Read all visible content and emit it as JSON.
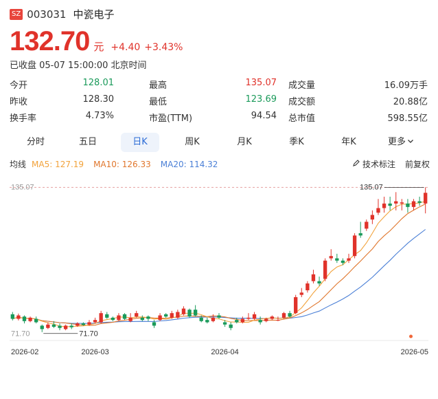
{
  "stock": {
    "market_badge": "SZ",
    "code": "003031",
    "name": "中瓷电子",
    "price": "132.70",
    "unit": "元",
    "change": "+4.40",
    "change_pct": "+3.43%",
    "status": "已收盘 05-07 15:00:00 北京时间"
  },
  "stats": {
    "rows": [
      [
        {
          "label": "今开",
          "value": "128.01",
          "tone": "green"
        },
        {
          "label": "最高",
          "value": "135.07",
          "tone": "red"
        },
        {
          "label": "成交量",
          "value": "16.09万手",
          "tone": "dark"
        }
      ],
      [
        {
          "label": "昨收",
          "value": "128.30",
          "tone": "dark"
        },
        {
          "label": "最低",
          "value": "123.69",
          "tone": "green"
        },
        {
          "label": "成交额",
          "value": "20.88亿",
          "tone": "dark"
        }
      ],
      [
        {
          "label": "换手率",
          "value": "4.73%",
          "tone": "dark"
        },
        {
          "label": "市盈(TTM)",
          "value": "94.54",
          "tone": "dark"
        },
        {
          "label": "总市值",
          "value": "598.55亿",
          "tone": "dark"
        }
      ]
    ]
  },
  "tabs": [
    "分时",
    "五日",
    "日K",
    "周K",
    "月K",
    "季K",
    "年K",
    "更多"
  ],
  "active_tab": "日K",
  "ma": {
    "label": "均线",
    "ma5": "MA5: 127.19",
    "ma10": "MA10: 126.33",
    "ma20": "MA20: 114.32",
    "tech_label": "技术标注",
    "adjust_label": "前复权",
    "colors": {
      "ma5": "#f2a23a",
      "ma10": "#e0762c",
      "ma20": "#4a7fd6"
    }
  },
  "colors": {
    "up": "#e0322a",
    "down": "#1a9a5a",
    "grid": "#e9e9e9"
  },
  "chart_data": {
    "type": "candlestick",
    "y_axis_label": "135.07",
    "ylim": [
      68,
      137
    ],
    "high_label": "135.07",
    "low_label": "71.70",
    "x_ticks": [
      {
        "index": 0,
        "label": "2026-02"
      },
      {
        "index": 14,
        "label": "2026-03"
      },
      {
        "index": 36,
        "label": "2026-04"
      },
      {
        "index": 60,
        "label": "2026-05"
      }
    ],
    "candles": [
      [
        79.5,
        77.5,
        80.5,
        76.8
      ],
      [
        77.5,
        79.0,
        79.8,
        76.8
      ],
      [
        78.5,
        76.5,
        79.0,
        75.5
      ],
      [
        76.5,
        78.0,
        78.5,
        76.0
      ],
      [
        77.5,
        76.0,
        78.5,
        75.5
      ],
      [
        74.5,
        73.0,
        75.0,
        71.7
      ],
      [
        73.5,
        75.0,
        76.0,
        73.0
      ],
      [
        75.0,
        74.0,
        76.5,
        73.5
      ],
      [
        74.5,
        73.5,
        75.5,
        72.5
      ],
      [
        73.0,
        74.5,
        75.0,
        72.5
      ],
      [
        74.5,
        73.8,
        75.5,
        73.0
      ],
      [
        74.5,
        75.5,
        76.0,
        74.0
      ],
      [
        75.5,
        74.8,
        76.0,
        74.5
      ],
      [
        75.0,
        76.0,
        77.0,
        74.5
      ],
      [
        76.0,
        77.0,
        78.0,
        75.5
      ],
      [
        76.0,
        80.0,
        81.0,
        75.5
      ],
      [
        79.5,
        78.0,
        80.5,
        77.5
      ],
      [
        78.0,
        77.0,
        78.5,
        76.5
      ],
      [
        77.0,
        79.0,
        80.0,
        76.5
      ],
      [
        79.5,
        77.5,
        80.0,
        77.0
      ],
      [
        76.5,
        78.0,
        80.0,
        76.0
      ],
      [
        78.5,
        80.0,
        81.0,
        78.0
      ],
      [
        78.0,
        77.0,
        79.0,
        76.5
      ],
      [
        78.5,
        77.5,
        79.0,
        76.5
      ],
      [
        76.0,
        74.5,
        77.0,
        73.5
      ],
      [
        77.0,
        79.0,
        80.0,
        76.5
      ],
      [
        79.5,
        78.5,
        80.0,
        78.0
      ],
      [
        78.0,
        80.0,
        81.0,
        77.5
      ],
      [
        78.0,
        80.5,
        81.5,
        77.5
      ],
      [
        79.5,
        82.0,
        83.0,
        79.0
      ],
      [
        81.5,
        78.5,
        82.0,
        78.0
      ],
      [
        81.5,
        79.0,
        83.5,
        78.5
      ],
      [
        78.0,
        76.5,
        79.0,
        76.0
      ],
      [
        77.0,
        76.0,
        78.0,
        75.5
      ],
      [
        76.5,
        78.0,
        79.5,
        76.0
      ],
      [
        79.0,
        78.0,
        80.0,
        77.5
      ],
      [
        76.0,
        75.0,
        77.0,
        74.0
      ],
      [
        75.0,
        73.5,
        76.0,
        72.5
      ],
      [
        77.0,
        76.0,
        78.0,
        75.5
      ],
      [
        76.0,
        77.5,
        78.5,
        75.5
      ],
      [
        77.5,
        78.0,
        80.0,
        77.0
      ],
      [
        77.5,
        79.5,
        80.5,
        77.0
      ],
      [
        77.0,
        76.0,
        78.5,
        75.0
      ],
      [
        76.5,
        77.5,
        78.0,
        76.0
      ],
      [
        77.5,
        78.5,
        79.0,
        77.0
      ],
      [
        77.0,
        77.0,
        78.5,
        76.5
      ],
      [
        78.0,
        80.0,
        80.5,
        77.5
      ],
      [
        80.0,
        78.5,
        81.0,
        78.0
      ],
      [
        80.0,
        87.0,
        88.0,
        79.5
      ],
      [
        88.0,
        89.0,
        91.0,
        87.0
      ],
      [
        90.0,
        93.0,
        94.0,
        89.0
      ],
      [
        94.0,
        97.0,
        99.0,
        93.0
      ],
      [
        94.0,
        93.0,
        96.0,
        92.0
      ],
      [
        95.0,
        103.0,
        104.0,
        94.0
      ],
      [
        104.0,
        105.0,
        108.0,
        103.0
      ],
      [
        104.0,
        103.0,
        106.0,
        102.0
      ],
      [
        103.0,
        102.0,
        104.0,
        101.0
      ],
      [
        103.0,
        104.0,
        106.0,
        102.0
      ],
      [
        105.0,
        114.0,
        115.0,
        104.0
      ],
      [
        115.0,
        114.0,
        120.0,
        113.0
      ],
      [
        117.0,
        120.0,
        121.0,
        116.0
      ],
      [
        121.0,
        123.0,
        125.0,
        119.0
      ],
      [
        124.0,
        126.0,
        130.0,
        123.0
      ],
      [
        126.0,
        128.0,
        131.0,
        124.0
      ],
      [
        128.0,
        127.0,
        131.0,
        125.0
      ],
      [
        128.0,
        129.0,
        133.0,
        125.0
      ],
      [
        128.0,
        128.5,
        130.0,
        125.0
      ],
      [
        128.0,
        126.5,
        130.0,
        124.0
      ],
      [
        126.5,
        129.0,
        130.0,
        125.0
      ],
      [
        129.0,
        128.3,
        131.0,
        127.0
      ],
      [
        128.01,
        132.7,
        135.07,
        123.69
      ]
    ]
  }
}
